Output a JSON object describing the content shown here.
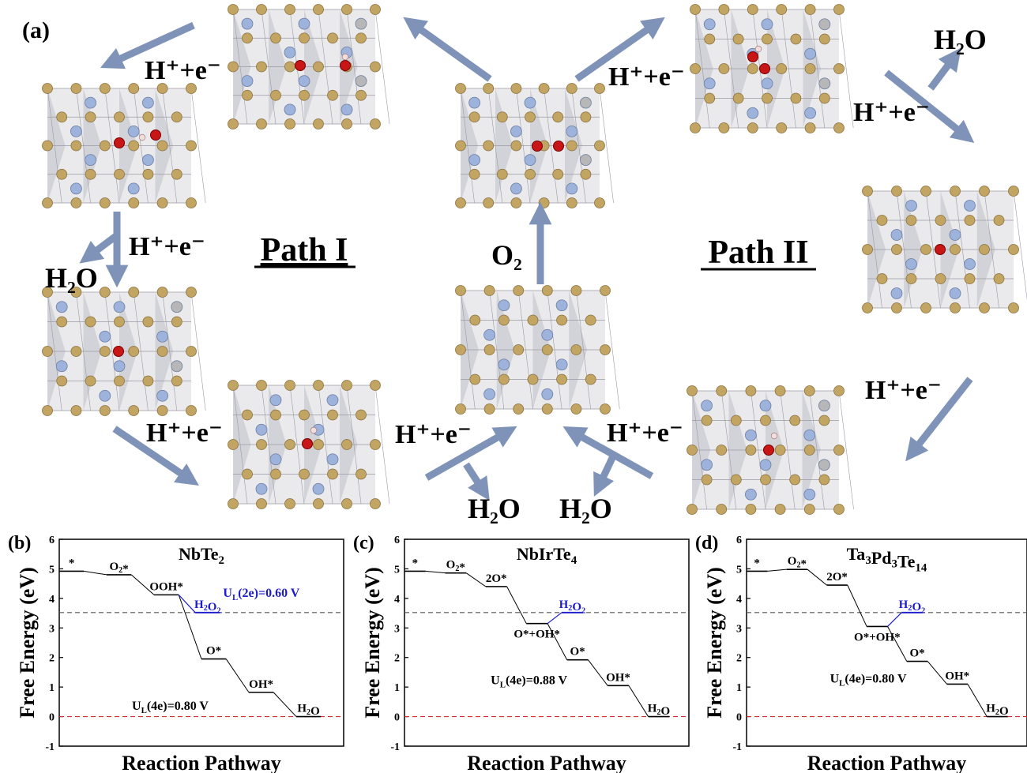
{
  "panel_a": {
    "label": "(a)",
    "path1": "Path I",
    "path2": "Path II",
    "he": "H⁺+e⁻",
    "h2o": "H₂O",
    "o2": "O₂"
  },
  "colors": {
    "arrow": "#7f93b8",
    "te_atom": "#c2a463",
    "metal_atom": "#9db3dc",
    "gray_atom": "#b7b7b7",
    "oxygen": "#c81616",
    "hydrogen": "#f3dede",
    "slab_bg": "#d8d8de",
    "h2o2_line": "#1a1acf",
    "ref_red": "#d63030",
    "ref_gray": "#555555"
  },
  "chart_data": [
    {
      "type": "line",
      "panel_label": "(b)",
      "title": "NbTe₂",
      "xlabel": "Reaction Pathway",
      "ylabel": "Free Energy (eV)",
      "ylim": [
        -1,
        6
      ],
      "yticks": [
        "-1",
        "0",
        "1",
        "2",
        "3",
        "4",
        "5",
        "6"
      ],
      "ref_lines": [
        3.52,
        0
      ],
      "steps": [
        {
          "label": "*",
          "value": 4.92
        },
        {
          "label": "O₂*",
          "value": 4.8
        },
        {
          "label": "OOH*",
          "value": 4.12
        },
        {
          "label": "O*",
          "value": 1.95
        },
        {
          "label": "OH*",
          "value": 0.82
        },
        {
          "label": "H₂O",
          "value": 0.0
        }
      ],
      "h2o2_branch": {
        "from_index": 2,
        "label": "H₂O₂",
        "value": 3.52
      },
      "annotations": [
        "U_L(2e)=0.60 V",
        "U_L(4e)=0.80 V"
      ]
    },
    {
      "type": "line",
      "panel_label": "(c)",
      "title": "NbIrTe₄",
      "xlabel": "Reaction Pathway",
      "ylabel": "Free Energy (eV)",
      "ylim": [
        -1,
        6
      ],
      "yticks": [
        "-1",
        "0",
        "1",
        "2",
        "3",
        "4",
        "5",
        "6"
      ],
      "ref_lines": [
        3.52,
        0
      ],
      "steps": [
        {
          "label": "*",
          "value": 4.92
        },
        {
          "label": "O₂*",
          "value": 4.86
        },
        {
          "label": "2O*",
          "value": 4.4
        },
        {
          "label": "O*+OH*",
          "value": 3.15
        },
        {
          "label": "O*",
          "value": 1.92
        },
        {
          "label": "OH*",
          "value": 1.05
        },
        {
          "label": "H₂O",
          "value": 0.0
        }
      ],
      "h2o2_branch": {
        "from_index": 3,
        "label": "H₂O₂",
        "value": 3.52
      },
      "annotations": [
        "U_L(4e)=0.88 V"
      ]
    },
    {
      "type": "line",
      "panel_label": "(d)",
      "title": "Ta₃Pd₃Te₁₄",
      "xlabel": "Reaction Pathway",
      "ylabel": "Free Energy (eV)",
      "ylim": [
        -1,
        6
      ],
      "yticks": [
        "-1",
        "0",
        "1",
        "2",
        "3",
        "4",
        "5",
        "6"
      ],
      "ref_lines": [
        3.52,
        0
      ],
      "steps": [
        {
          "label": "*",
          "value": 4.92
        },
        {
          "label": "O₂*",
          "value": 4.98
        },
        {
          "label": "2O*",
          "value": 4.45
        },
        {
          "label": "O*+OH*",
          "value": 3.05
        },
        {
          "label": "O*",
          "value": 1.87
        },
        {
          "label": "OH*",
          "value": 1.1
        },
        {
          "label": "H₂O",
          "value": 0.0
        }
      ],
      "h2o2_branch": {
        "from_index": 3,
        "label": "H₂O₂",
        "value": 3.52
      },
      "annotations": [
        "U_L(4e)=0.80 V"
      ]
    }
  ]
}
